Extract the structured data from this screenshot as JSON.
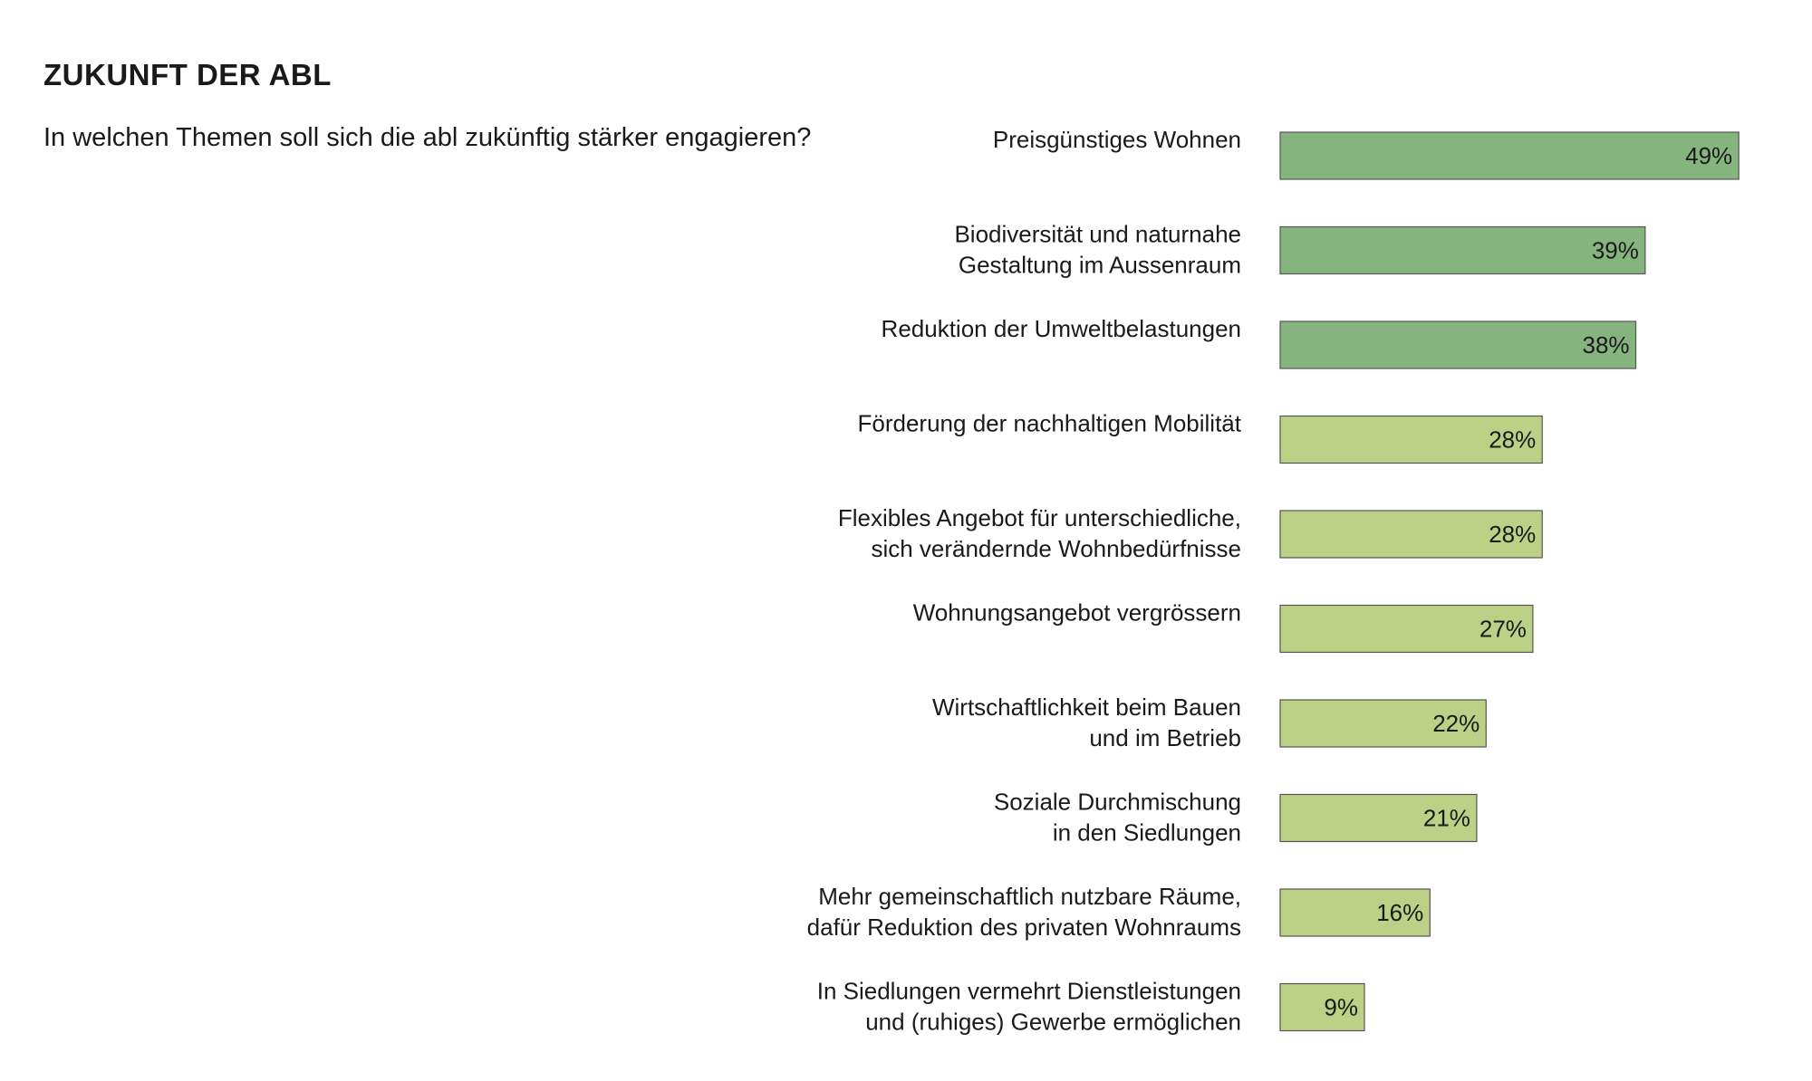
{
  "heading": "ZUKUNFT DER ABL",
  "question": "In welchen Themen soll sich die abl zukünftig stärker engagieren?",
  "chart_data": {
    "type": "bar",
    "orientation": "horizontal",
    "categories": [
      [
        "Preisgünstiges Wohnen"
      ],
      [
        "Biodiversität und naturnahe",
        "Gestaltung im Aussenraum"
      ],
      [
        "Reduktion der Umweltbelastungen"
      ],
      [
        "Förderung der nachhaltigen Mobilität"
      ],
      [
        "Flexibles Angebot für unterschiedliche,",
        "sich verändernde Wohnbedürfnisse"
      ],
      [
        "Wohnungsangebot vergrössern"
      ],
      [
        "Wirtschaftlichkeit beim Bauen",
        "und im Betrieb"
      ],
      [
        "Soziale Durchmischung",
        "in den Siedlungen"
      ],
      [
        "Mehr gemeinschaftlich nutzbare Räume,",
        "dafür Reduktion des privaten Wohnraums"
      ],
      [
        "In Siedlungen vermehrt Dienstleistungen",
        "und (ruhiges) Gewerbe ermöglichen"
      ]
    ],
    "values": [
      49,
      39,
      38,
      28,
      28,
      27,
      22,
      21,
      16,
      9
    ],
    "value_labels": [
      "49%",
      "39%",
      "38%",
      "28%",
      "28%",
      "27%",
      "22%",
      "21%",
      "16%",
      "9%"
    ],
    "bar_colors": [
      "#86b47f",
      "#86b47f",
      "#86b47f",
      "#bcd086",
      "#bcd086",
      "#bcd086",
      "#bcd086",
      "#bcd086",
      "#bcd086",
      "#bcd086"
    ],
    "bar_border_color": "#555555",
    "xlim": [
      0,
      49
    ],
    "grid": false,
    "legend": "none"
  }
}
